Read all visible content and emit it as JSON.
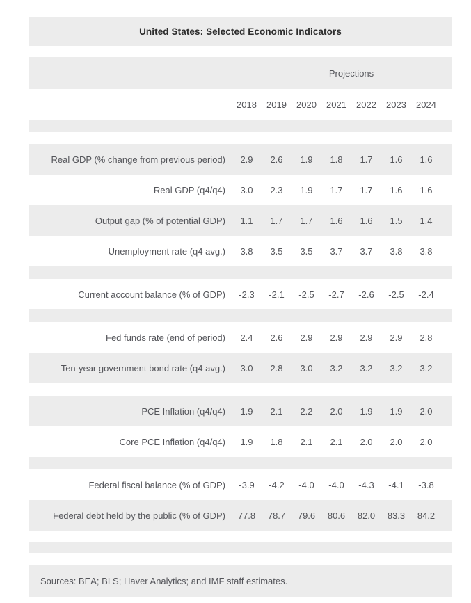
{
  "page": {
    "title": "United States: Selected Economic Indicators"
  },
  "table": {
    "projections_label": "Projections",
    "years": [
      "2018",
      "2019",
      "2020",
      "2021",
      "2022",
      "2023",
      "2024"
    ],
    "rows": [
      {
        "label": "Real GDP (% change from previous period)",
        "values": [
          "2.9",
          "2.6",
          "1.9",
          "1.8",
          "1.7",
          "1.6",
          "1.6"
        ]
      },
      {
        "label": "Real GDP (q4/q4)",
        "values": [
          "3.0",
          "2.3",
          "1.9",
          "1.7",
          "1.7",
          "1.6",
          "1.6"
        ]
      },
      {
        "label": "Output gap (% of potential GDP)",
        "values": [
          "1.1",
          "1.7",
          "1.7",
          "1.6",
          "1.6",
          "1.5",
          "1.4"
        ]
      },
      {
        "label": "Unemployment rate (q4 avg.)",
        "values": [
          "3.8",
          "3.5",
          "3.5",
          "3.7",
          "3.7",
          "3.8",
          "3.8"
        ]
      },
      {
        "label": "Current account balance (% of GDP)",
        "values": [
          "-2.3",
          "-2.1",
          "-2.5",
          "-2.7",
          "-2.6",
          "-2.5",
          "-2.4"
        ]
      },
      {
        "label": "Fed funds rate (end of period)",
        "values": [
          "2.4",
          "2.6",
          "2.9",
          "2.9",
          "2.9",
          "2.9",
          "2.8"
        ]
      },
      {
        "label": "Ten-year government bond rate (q4 avg.)",
        "values": [
          "3.0",
          "2.8",
          "3.0",
          "3.2",
          "3.2",
          "3.2",
          "3.2"
        ]
      },
      {
        "label": "PCE Inflation (q4/q4)",
        "values": [
          "1.9",
          "2.1",
          "2.2",
          "2.0",
          "1.9",
          "1.9",
          "2.0"
        ]
      },
      {
        "label": "Core PCE Inflation (q4/q4)",
        "values": [
          "1.9",
          "1.8",
          "2.1",
          "2.1",
          "2.0",
          "2.0",
          "2.0"
        ]
      },
      {
        "label": "Federal fiscal balance (% of GDP)",
        "values": [
          "-3.9",
          "-4.2",
          "-4.0",
          "-4.0",
          "-4.3",
          "-4.1",
          "-3.8"
        ]
      },
      {
        "label": "Federal debt held by the public (% of GDP)",
        "values": [
          "77.8",
          "78.7",
          "79.6",
          "80.6",
          "82.0",
          "83.3",
          "84.2"
        ]
      }
    ]
  },
  "footer": {
    "source_note": "Sources: BEA; BLS; Haver Analytics; and IMF staff estimates."
  },
  "colors": {
    "band_gray": "#ececec",
    "body_text": "#54555a",
    "title_text": "#2d2d2d"
  }
}
